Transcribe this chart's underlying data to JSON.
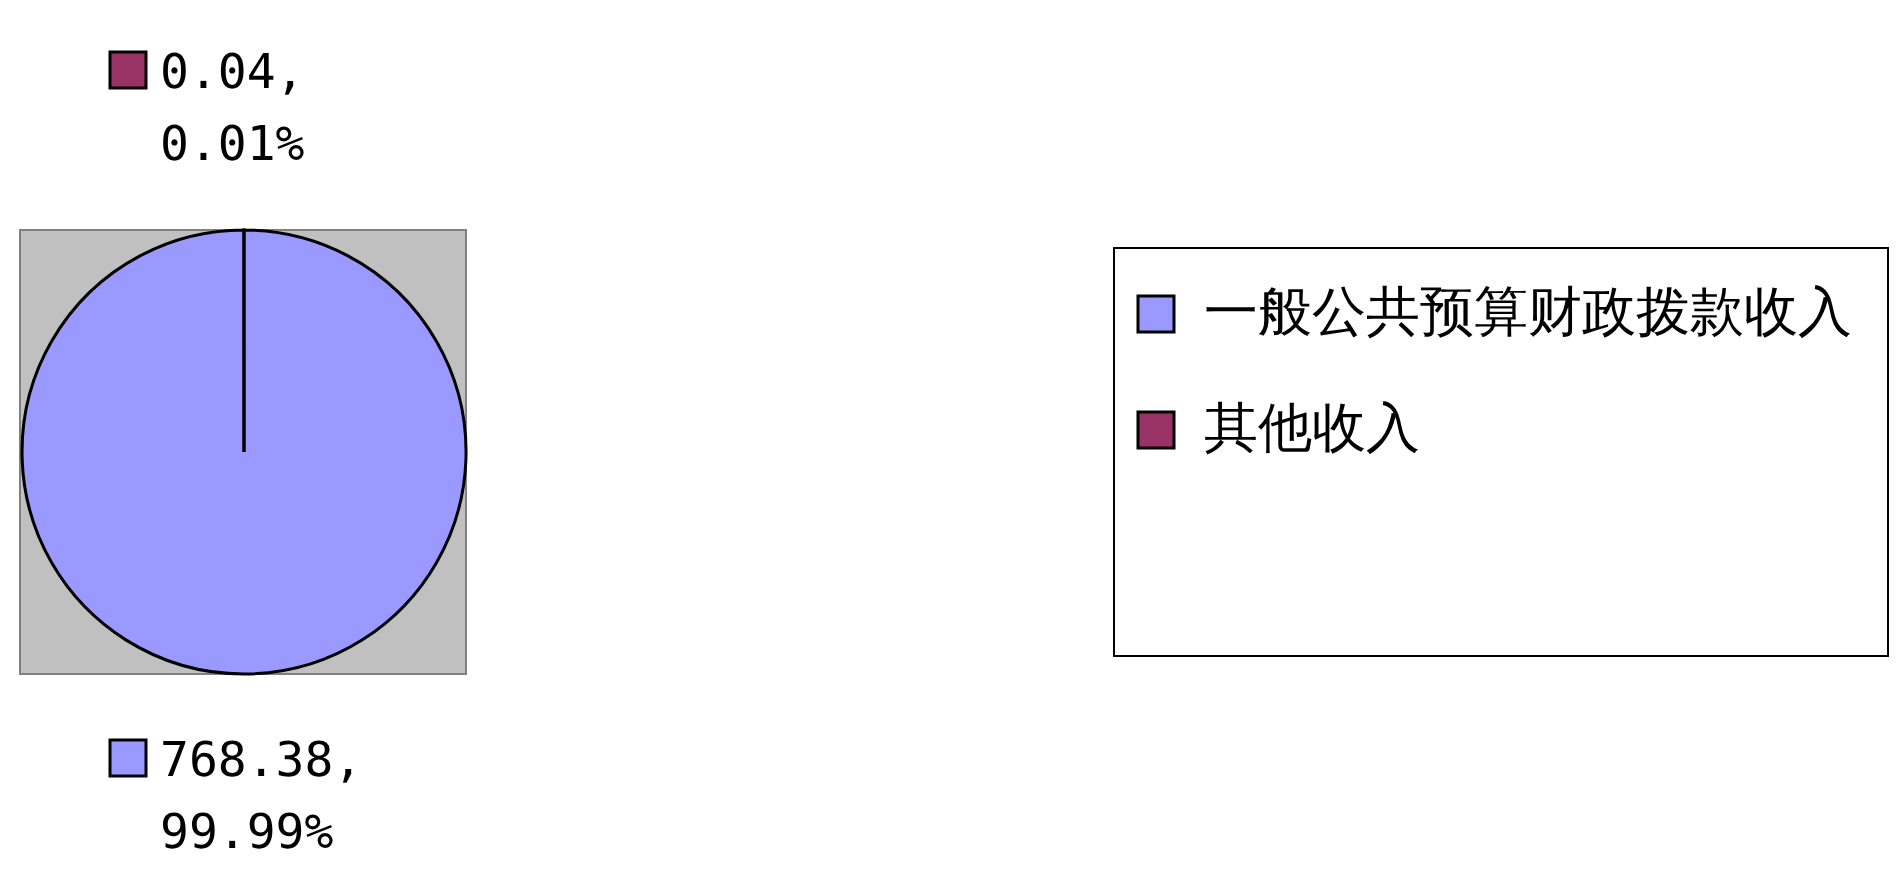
{
  "chart_data": {
    "type": "pie",
    "categories": [
      "一般公共预算财政拨款收入",
      "其他收入"
    ],
    "values": [
      768.38,
      0.04
    ],
    "colors": [
      "#9999ff",
      "#993366"
    ],
    "value_labels": [
      "768.38, 99.99%",
      "0.04, 0.01%"
    ],
    "legend": "right"
  }
}
